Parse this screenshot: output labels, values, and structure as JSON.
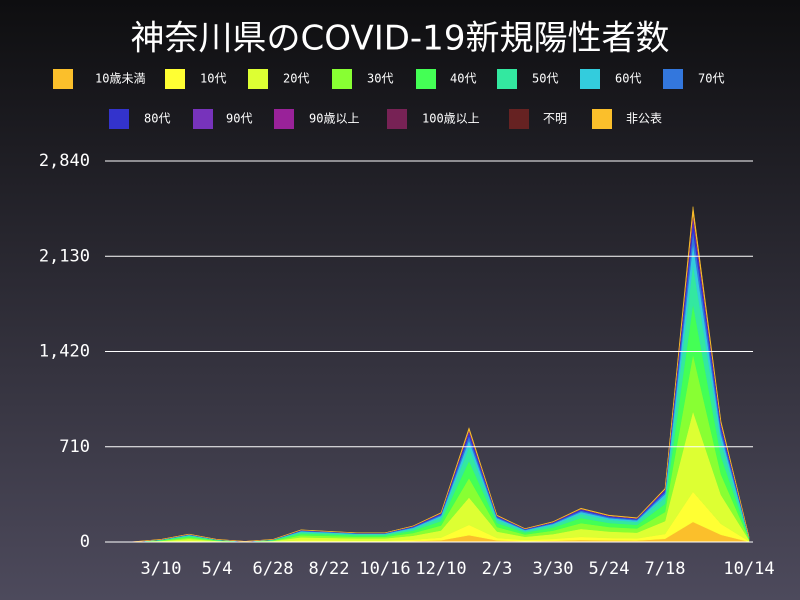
{
  "chart_data": {
    "type": "stacked_area",
    "title": "神奈川県のCOVID-19新規陽性者数",
    "categories": [
      null,
      null,
      "3/10",
      null,
      "5/4",
      null,
      "6/28",
      null,
      "8/22",
      null,
      "10/16",
      null,
      "12/10",
      null,
      "2/3",
      null,
      "3/30",
      null,
      "5/24",
      null,
      "7/18",
      null,
      null,
      "10/14"
    ],
    "ylim": [
      0,
      2840
    ],
    "yticks": [
      0,
      710,
      {
        "value": 1420,
        "label": "1,420"
      },
      {
        "value": 2130,
        "label": "2,130"
      },
      {
        "value": 2840,
        "label": "2,840"
      }
    ],
    "grid": true,
    "series": [
      {
        "name": "10歳未満",
        "color": "#fbbf2b",
        "values": [
          0,
          0,
          1,
          4,
          1,
          0,
          1,
          5,
          5,
          4,
          4,
          7,
          13,
          51,
          12,
          6,
          9,
          15,
          12,
          11,
          24,
          150,
          54,
          2
        ]
      },
      {
        "name": "10代",
        "color": "#ffff33",
        "values": [
          0,
          0,
          2,
          5,
          2,
          0,
          2,
          8,
          7,
          6,
          6,
          11,
          20,
          77,
          18,
          9,
          14,
          23,
          18,
          16,
          36,
          225,
          81,
          4
        ]
      },
      {
        "name": "20代",
        "color": "#ddff33",
        "values": [
          0,
          1,
          5,
          14,
          5,
          1,
          5,
          22,
          19,
          17,
          17,
          29,
          53,
          204,
          48,
          24,
          36,
          60,
          48,
          43,
          96,
          600,
          216,
          10
        ]
      },
      {
        "name": "30代",
        "color": "#88ff33",
        "values": [
          0,
          0,
          3,
          10,
          3,
          1,
          3,
          15,
          14,
          12,
          12,
          20,
          37,
          145,
          34,
          17,
          26,
          43,
          34,
          31,
          68,
          425,
          153,
          7
        ]
      },
      {
        "name": "40代",
        "color": "#44ff55",
        "values": [
          0,
          0,
          3,
          9,
          3,
          1,
          3,
          14,
          12,
          11,
          11,
          18,
          33,
          128,
          30,
          15,
          23,
          38,
          30,
          27,
          60,
          375,
          135,
          6
        ]
      },
      {
        "name": "50代",
        "color": "#33e8a0",
        "values": [
          0,
          1,
          2,
          7,
          2,
          1,
          2,
          11,
          10,
          8,
          8,
          14,
          26,
          102,
          24,
          12,
          18,
          30,
          24,
          22,
          48,
          300,
          108,
          5
        ]
      },
      {
        "name": "60代",
        "color": "#33ccdd",
        "values": [
          0,
          0,
          1,
          4,
          1,
          0,
          1,
          5,
          5,
          4,
          4,
          7,
          13,
          51,
          12,
          6,
          9,
          15,
          12,
          11,
          24,
          150,
          54,
          2
        ]
      },
      {
        "name": "70代",
        "color": "#3377dd",
        "values": [
          0,
          0,
          1,
          2,
          1,
          0,
          1,
          4,
          3,
          3,
          3,
          5,
          9,
          34,
          8,
          4,
          6,
          10,
          8,
          7,
          16,
          100,
          36,
          2
        ]
      },
      {
        "name": "80代",
        "color": "#3333cc",
        "values": [
          0,
          0,
          1,
          2,
          1,
          1,
          1,
          3,
          2,
          2,
          2,
          4,
          7,
          26,
          6,
          3,
          4,
          8,
          6,
          5,
          12,
          75,
          27,
          1
        ]
      },
      {
        "name": "90代",
        "color": "#7733bb",
        "values": [
          0,
          0,
          0,
          1,
          0,
          0,
          0,
          1,
          1,
          1,
          1,
          1,
          2,
          9,
          2,
          1,
          2,
          3,
          2,
          2,
          4,
          25,
          9,
          0
        ]
      },
      {
        "name": "90歳以上",
        "color": "#992299",
        "values": [
          0,
          0,
          0,
          0,
          0,
          0,
          0,
          0,
          0,
          0,
          0,
          1,
          1,
          4,
          1,
          1,
          1,
          1,
          1,
          1,
          2,
          13,
          5,
          0
        ]
      },
      {
        "name": "100歳以上",
        "color": "#772255",
        "values": [
          0,
          0,
          0,
          0,
          0,
          0,
          0,
          0,
          0,
          0,
          0,
          0,
          0,
          0,
          0,
          0,
          0,
          0,
          0,
          0,
          0,
          0,
          0,
          0
        ]
      },
      {
        "name": "不明",
        "color": "#662222",
        "values": [
          0,
          0,
          0,
          0,
          0,
          0,
          0,
          1,
          0,
          0,
          0,
          1,
          1,
          4,
          1,
          0,
          1,
          1,
          1,
          1,
          2,
          12,
          4,
          0
        ]
      },
      {
        "name": "非公表",
        "color": "#fbbf2b",
        "values": [
          0,
          0,
          1,
          1,
          1,
          0,
          1,
          2,
          2,
          1,
          1,
          2,
          4,
          17,
          4,
          2,
          3,
          5,
          4,
          4,
          8,
          50,
          18,
          1
        ]
      }
    ]
  }
}
